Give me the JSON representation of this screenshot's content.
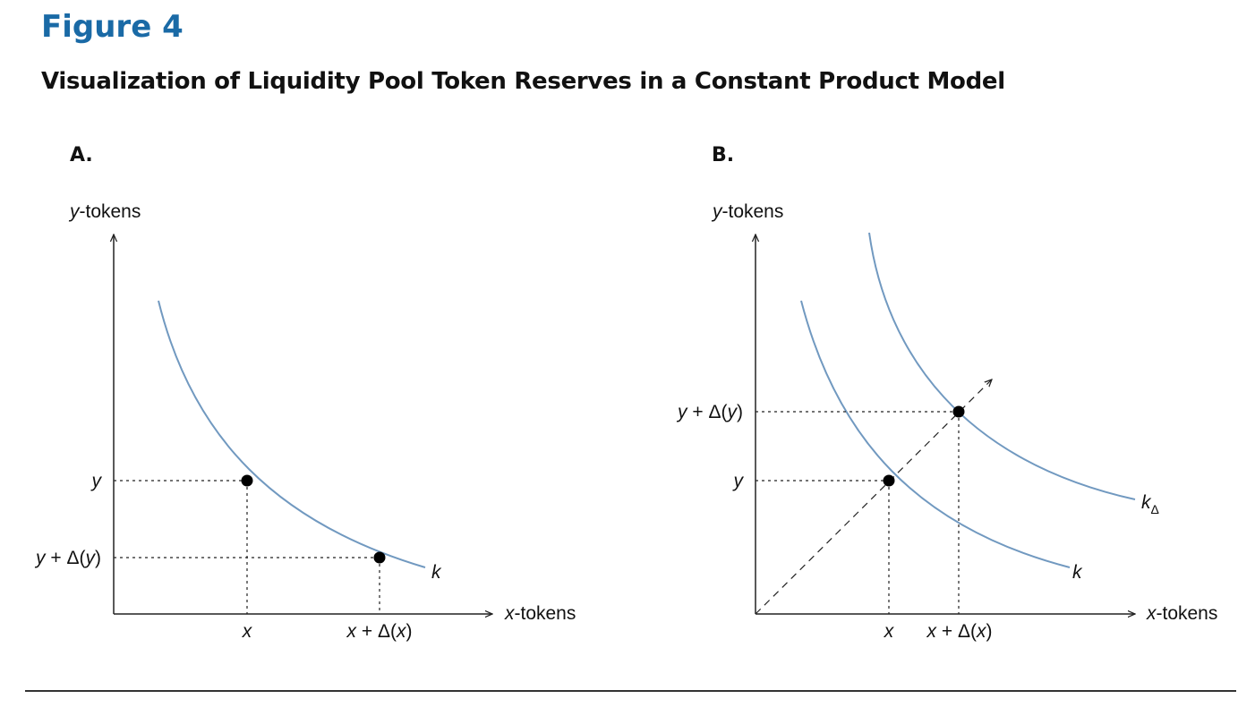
{
  "figure_label": "Figure 4",
  "title": "Visualization of Liquidity Pool Token Reserves in a Constant Product Model",
  "colors": {
    "figure_label": "#1a6aa6",
    "curve": "#7199c0",
    "ink": "#111111"
  },
  "panel_a": {
    "label": "A.",
    "y_axis_var": "y",
    "y_axis_suffix": "-tokens",
    "x_axis_var": "x",
    "x_axis_suffix": "-tokens",
    "tick_y": "y",
    "tick_y_delta": {
      "a": "y",
      "b": " + Δ(",
      "c": "y",
      "d": ")"
    },
    "tick_x": "x",
    "tick_x_delta": {
      "a": "x",
      "b": " + Δ(",
      "c": "x",
      "d": ")"
    },
    "curve_label": "k"
  },
  "panel_b": {
    "label": "B.",
    "y_axis_var": "y",
    "y_axis_suffix": "-tokens",
    "x_axis_var": "x",
    "x_axis_suffix": "-tokens",
    "tick_y": "y",
    "tick_y_delta": {
      "a": "y",
      "b": " + Δ(",
      "c": "y",
      "d": ")"
    },
    "tick_x": "x",
    "tick_x_delta": {
      "a": "x",
      "b": " + Δ(",
      "c": "x",
      "d": ")"
    },
    "curve_label": "k",
    "curve2_label": "k",
    "curve2_subscript": "Δ"
  }
}
